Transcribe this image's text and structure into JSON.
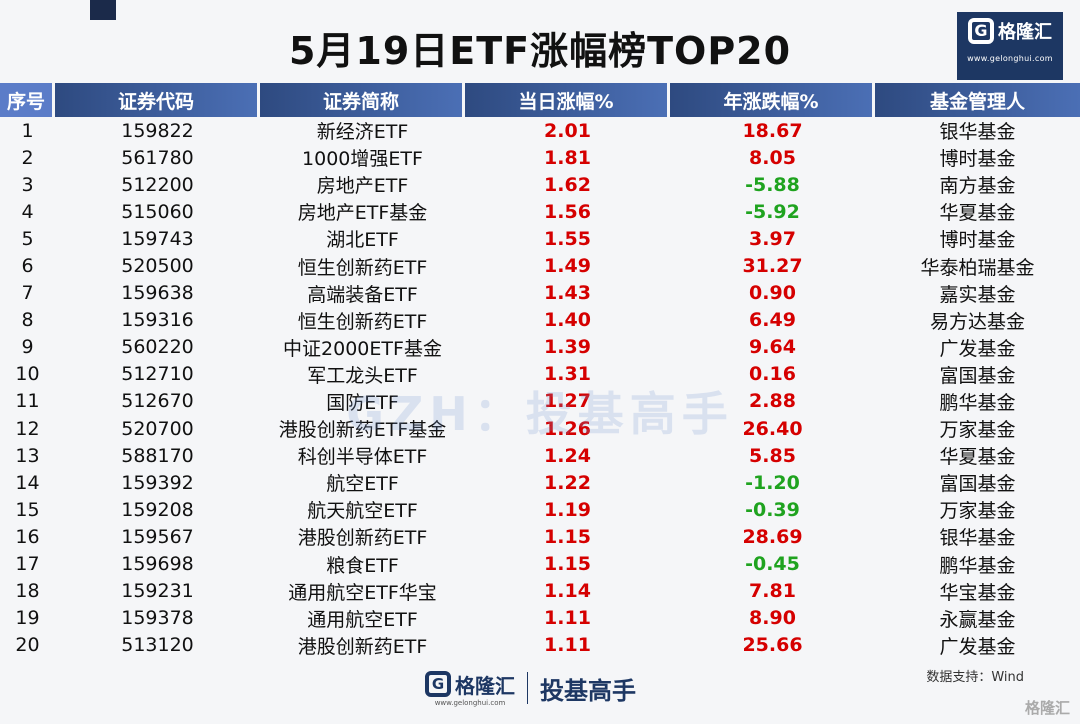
{
  "title": "5月19日ETF涨幅榜TOP20",
  "logo": {
    "letter": "G",
    "name": "格隆汇",
    "url": "www.gelonghui.com"
  },
  "columns": [
    "序号",
    "证券代码",
    "证券简称",
    "当日涨幅%",
    "年涨跌幅%",
    "基金管理人"
  ],
  "rows": [
    {
      "rank": "1",
      "code": "159822",
      "name": "新经济ETF",
      "day": "2.01",
      "year": "18.67",
      "mgr": "银华基金"
    },
    {
      "rank": "2",
      "code": "561780",
      "name": "1000增强ETF",
      "day": "1.81",
      "year": "8.05",
      "mgr": "博时基金"
    },
    {
      "rank": "3",
      "code": "512200",
      "name": "房地产ETF",
      "day": "1.62",
      "year": "-5.88",
      "mgr": "南方基金"
    },
    {
      "rank": "4",
      "code": "515060",
      "name": "房地产ETF基金",
      "day": "1.56",
      "year": "-5.92",
      "mgr": "华夏基金"
    },
    {
      "rank": "5",
      "code": "159743",
      "name": "湖北ETF",
      "day": "1.55",
      "year": "3.97",
      "mgr": "博时基金"
    },
    {
      "rank": "6",
      "code": "520500",
      "name": "恒生创新药ETF",
      "day": "1.49",
      "year": "31.27",
      "mgr": "华泰柏瑞基金"
    },
    {
      "rank": "7",
      "code": "159638",
      "name": "高端装备ETF",
      "day": "1.43",
      "year": "0.90",
      "mgr": "嘉实基金"
    },
    {
      "rank": "8",
      "code": "159316",
      "name": "恒生创新药ETF",
      "day": "1.40",
      "year": "6.49",
      "mgr": "易方达基金"
    },
    {
      "rank": "9",
      "code": "560220",
      "name": "中证2000ETF基金",
      "day": "1.39",
      "year": "9.64",
      "mgr": "广发基金"
    },
    {
      "rank": "10",
      "code": "512710",
      "name": "军工龙头ETF",
      "day": "1.31",
      "year": "0.16",
      "mgr": "富国基金"
    },
    {
      "rank": "11",
      "code": "512670",
      "name": "国防ETF",
      "day": "1.27",
      "year": "2.88",
      "mgr": "鹏华基金"
    },
    {
      "rank": "12",
      "code": "520700",
      "name": "港股创新药ETF基金",
      "day": "1.26",
      "year": "26.40",
      "mgr": "万家基金"
    },
    {
      "rank": "13",
      "code": "588170",
      "name": "科创半导体ETF",
      "day": "1.24",
      "year": "5.85",
      "mgr": "华夏基金"
    },
    {
      "rank": "14",
      "code": "159392",
      "name": "航空ETF",
      "day": "1.22",
      "year": "-1.20",
      "mgr": "富国基金"
    },
    {
      "rank": "15",
      "code": "159208",
      "name": "航天航空ETF",
      "day": "1.19",
      "year": "-0.39",
      "mgr": "万家基金"
    },
    {
      "rank": "16",
      "code": "159567",
      "name": "港股创新药ETF",
      "day": "1.15",
      "year": "28.69",
      "mgr": "银华基金"
    },
    {
      "rank": "17",
      "code": "159698",
      "name": "粮食ETF",
      "day": "1.15",
      "year": "-0.45",
      "mgr": "鹏华基金"
    },
    {
      "rank": "18",
      "code": "159231",
      "name": "通用航空ETF华宝",
      "day": "1.14",
      "year": "7.81",
      "mgr": "华宝基金"
    },
    {
      "rank": "19",
      "code": "159378",
      "name": "通用航空ETF",
      "day": "1.11",
      "year": "8.90",
      "mgr": "永赢基金"
    },
    {
      "rank": "20",
      "code": "513120",
      "name": "港股创新药ETF",
      "day": "1.11",
      "year": "25.66",
      "mgr": "广发基金"
    }
  ],
  "watermark": "GZH：投基高手",
  "source": "数据支持：Wind",
  "footer": {
    "name": "格隆汇",
    "url": "www.gelonghui.com",
    "slogan": "投基高手"
  },
  "corner_mark": "格隆汇",
  "colors": {
    "header_blue": "#2e4a80",
    "up_red": "#d50000",
    "down_green": "#1fa31f",
    "brand_navy": "#1d3763"
  }
}
